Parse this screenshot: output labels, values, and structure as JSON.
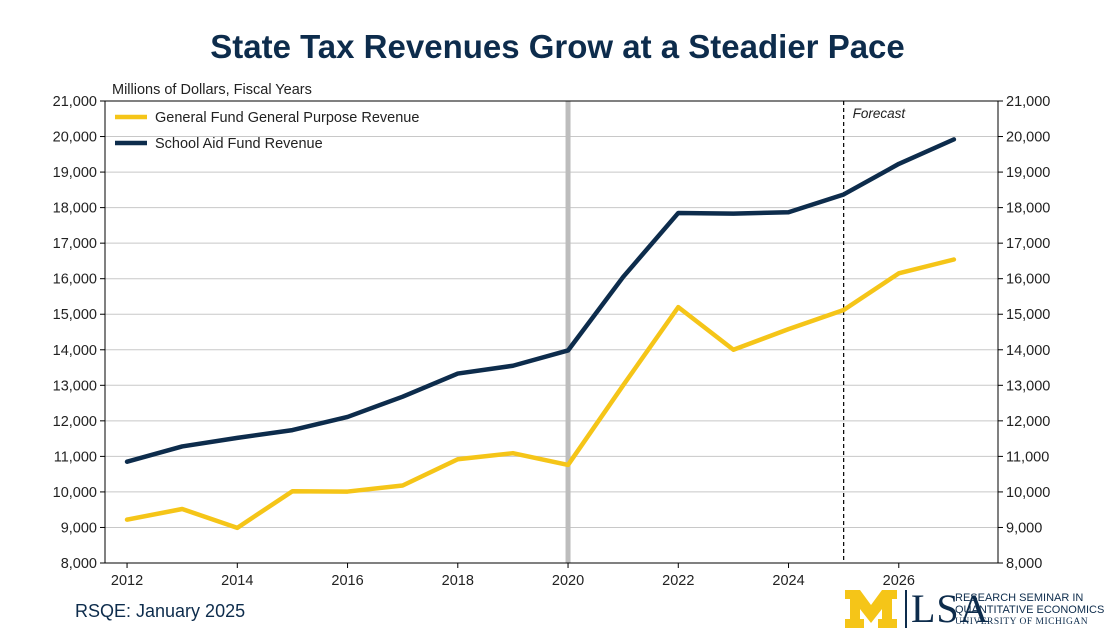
{
  "chart_data": {
    "type": "line",
    "title": "State Tax Revenues Grow at a Steadier Pace",
    "ylabel": "Millions of Dollars, Fiscal Years",
    "xlabel": "",
    "x": [
      2012,
      2013,
      2014,
      2015,
      2016,
      2017,
      2018,
      2019,
      2020,
      2021,
      2022,
      2023,
      2024,
      2025,
      2026,
      2027
    ],
    "xticks": [
      "2012",
      "2014",
      "2016",
      "2018",
      "2020",
      "2022",
      "2024",
      "2026"
    ],
    "xlim": [
      2011.6,
      2027.8
    ],
    "ylim": [
      8000,
      21000
    ],
    "yticks": [
      "8,000",
      "9,000",
      "10,000",
      "11,000",
      "12,000",
      "13,000",
      "14,000",
      "15,000",
      "16,000",
      "17,000",
      "18,000",
      "19,000",
      "20,000",
      "21,000"
    ],
    "grid": true,
    "legend_position": "top-left",
    "series": [
      {
        "name": "General Fund General Purpose Revenue",
        "color": "#f5c518",
        "values": [
          9220,
          9520,
          8990,
          10020,
          10010,
          10180,
          10920,
          11090,
          10760,
          13000,
          15200,
          14000,
          14580,
          15120,
          16150,
          16540
        ]
      },
      {
        "name": "School Aid Fund Revenue",
        "color": "#0d2c4c",
        "values": [
          10850,
          11280,
          11520,
          11740,
          12110,
          12680,
          13330,
          13550,
          13980,
          16050,
          17850,
          17830,
          17870,
          18370,
          19230,
          19920
        ]
      }
    ],
    "vertical_markers": [
      {
        "x": 2020,
        "style": "solid-gray"
      },
      {
        "x": 2025,
        "style": "dashed",
        "label": "Forecast"
      }
    ],
    "secondary_y_axis": true
  },
  "footer": {
    "source": "RSQE: January 2025"
  },
  "logo": {
    "lsa": "LSA",
    "line1": "RESEARCH SEMINAR IN",
    "line2": "QUANTITATIVE ECONOMICS",
    "line3": "UNIVERSITY OF MICHIGAN",
    "colors": {
      "maize": "#f5c518",
      "blue": "#0d2c4c"
    }
  }
}
